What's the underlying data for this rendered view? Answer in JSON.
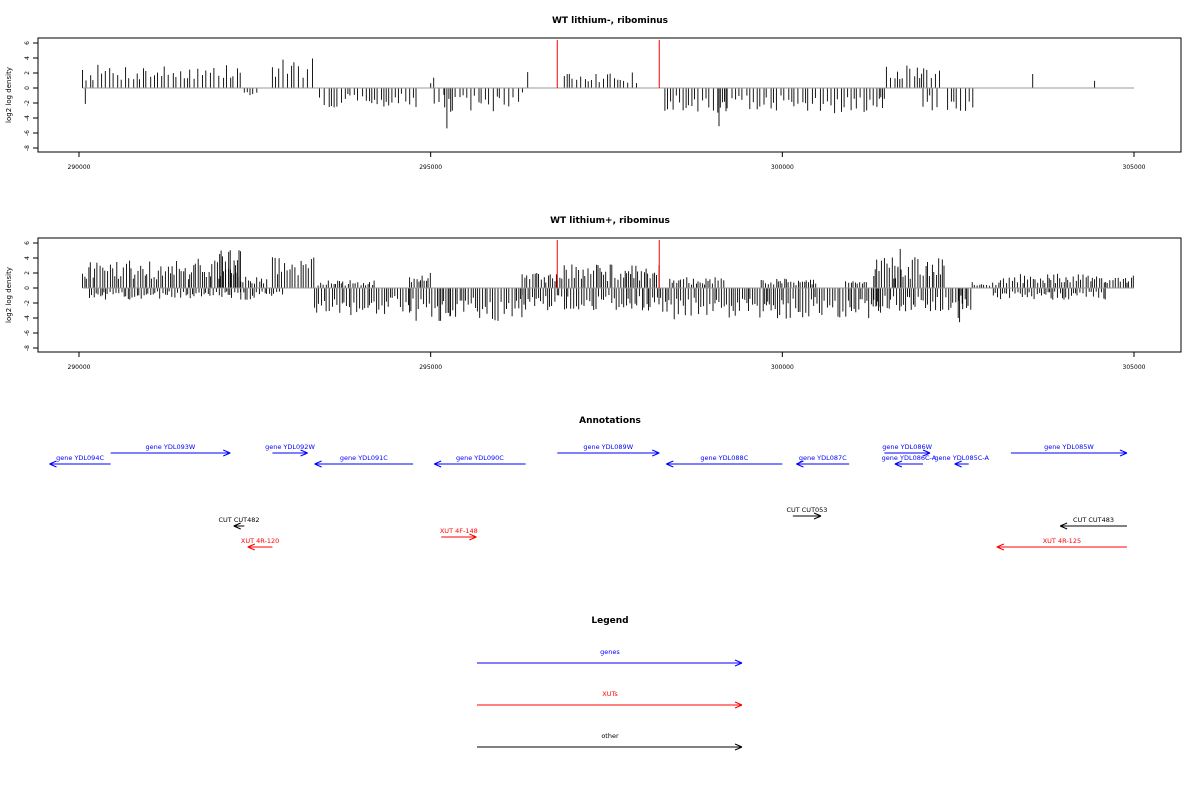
{
  "colors": {
    "gene": "#0000ff",
    "xut": "#ff0000",
    "other": "#000000",
    "marker": "#ff0000",
    "bar": "#000000",
    "baseline": "#999999"
  },
  "chart_data": [
    {
      "type": "bar",
      "title": "WT lithium-, ribominus",
      "ylabel": "log2 log density",
      "xlim": [
        290000,
        305000
      ],
      "ylim": [
        -8,
        6
      ],
      "x_ticks": [
        290000,
        295000,
        300000,
        305000
      ],
      "x_tick_labels": [
        "290000",
        "295000",
        "300000",
        "305000"
      ],
      "y_ticks": [
        6,
        4,
        2,
        0,
        -2,
        -4,
        -6,
        -8
      ],
      "y_tick_labels": [
        "6",
        "4",
        "2",
        "0",
        "-2",
        "-4",
        "-6",
        "-8"
      ],
      "x_range": [
        290050,
        305000
      ],
      "marker_lines": [
        296800,
        298250
      ],
      "segments": [
        {
          "from": 290050,
          "to": 290080,
          "value": 5.0
        },
        {
          "from": 290090,
          "to": 290100,
          "value": -2.8
        },
        {
          "from": 290100,
          "to": 292350,
          "value": 3.0
        },
        {
          "from": 292350,
          "to": 292550,
          "value": -1.0
        },
        {
          "from": 292750,
          "to": 293350,
          "value": 4.0
        },
        {
          "from": 293420,
          "to": 294850,
          "value": -2.5
        },
        {
          "from": 295000,
          "to": 295050,
          "value": 2.0
        },
        {
          "from": 295050,
          "to": 296200,
          "value": -3.0
        },
        {
          "from": 295200,
          "to": 295300,
          "value": -5.5
        },
        {
          "from": 296250,
          "to": 296320,
          "value": -2.0
        },
        {
          "from": 296380,
          "to": 296420,
          "value": 2.3
        },
        {
          "from": 296900,
          "to": 297300,
          "value": 1.8
        },
        {
          "from": 297350,
          "to": 297950,
          "value": 2.0
        },
        {
          "from": 298330,
          "to": 301450,
          "value": -3.2
        },
        {
          "from": 299100,
          "to": 299200,
          "value": -5.0
        },
        {
          "from": 301400,
          "to": 301460,
          "value": -2.5
        },
        {
          "from": 301480,
          "to": 301980,
          "value": 3.5
        },
        {
          "from": 301980,
          "to": 302300,
          "value": 2.5
        },
        {
          "from": 302000,
          "to": 302200,
          "value": -3.0
        },
        {
          "from": 302350,
          "to": 302730,
          "value": -3.0
        },
        {
          "from": 303560,
          "to": 303580,
          "value": 2.5
        },
        {
          "from": 304440,
          "to": 304460,
          "value": 1.0
        }
      ]
    },
    {
      "type": "bar",
      "title": "WT lithium+, ribominus",
      "ylabel": "log2 log density",
      "xlim": [
        290000,
        305000
      ],
      "ylim": [
        -8,
        6
      ],
      "x_ticks": [
        290000,
        295000,
        300000,
        305000
      ],
      "x_tick_labels": [
        "290000",
        "295000",
        "300000",
        "305000"
      ],
      "y_ticks": [
        6,
        4,
        2,
        0,
        -2,
        -4,
        -6,
        -8
      ],
      "y_tick_labels": [
        "6",
        "4",
        "2",
        "0",
        "-2",
        "-4",
        "-6",
        "-8"
      ],
      "x_range": [
        290050,
        305000
      ],
      "marker_lines": [
        296800,
        298250
      ],
      "segments": [
        {
          "from": 290050,
          "to": 292300,
          "value": 3.8
        },
        {
          "from": 290150,
          "to": 292300,
          "value": -1.5
        },
        {
          "from": 292000,
          "to": 292300,
          "value": 5.0
        },
        {
          "from": 292300,
          "to": 292700,
          "value": 1.5
        },
        {
          "from": 292300,
          "to": 292900,
          "value": -1.5
        },
        {
          "from": 292750,
          "to": 293350,
          "value": 4.3
        },
        {
          "from": 293350,
          "to": 294700,
          "value": -3.5
        },
        {
          "from": 293400,
          "to": 294200,
          "value": 1.0
        },
        {
          "from": 294700,
          "to": 295000,
          "value": 2.0
        },
        {
          "from": 294700,
          "to": 296300,
          "value": -4.2
        },
        {
          "from": 295250,
          "to": 295300,
          "value": -8.0
        },
        {
          "from": 296300,
          "to": 296800,
          "value": -3.0
        },
        {
          "from": 296300,
          "to": 296800,
          "value": 2.0
        },
        {
          "from": 296800,
          "to": 298250,
          "value": 3.0
        },
        {
          "from": 296800,
          "to": 298300,
          "value": -3.0
        },
        {
          "from": 298300,
          "to": 301400,
          "value": -4.0
        },
        {
          "from": 298400,
          "to": 299200,
          "value": 1.5
        },
        {
          "from": 299700,
          "to": 300500,
          "value": 1.2
        },
        {
          "from": 300900,
          "to": 301200,
          "value": 1.0
        },
        {
          "from": 301300,
          "to": 302300,
          "value": 4.0
        },
        {
          "from": 301600,
          "to": 301700,
          "value": 5.5
        },
        {
          "from": 301300,
          "to": 302700,
          "value": -3.0
        },
        {
          "from": 302500,
          "to": 302600,
          "value": -5.5
        },
        {
          "from": 302700,
          "to": 303100,
          "value": 1.0
        },
        {
          "from": 303100,
          "to": 305000,
          "value": 1.8
        },
        {
          "from": 303000,
          "to": 304600,
          "value": -1.5
        }
      ]
    }
  ],
  "annotations": {
    "title": "Annotations",
    "items": [
      {
        "name": "gene YDL094C",
        "kind": "gene",
        "strand": "-",
        "start": 290050,
        "end": 290450
      },
      {
        "name": "gene YDL093W",
        "kind": "gene",
        "strand": "+",
        "start": 290450,
        "end": 292150
      },
      {
        "name": "gene YDL092W",
        "kind": "gene",
        "strand": "+",
        "start": 292750,
        "end": 293250
      },
      {
        "name": "gene YDL091C",
        "kind": "gene",
        "strand": "-",
        "start": 293350,
        "end": 294750
      },
      {
        "name": "gene YDL090C",
        "kind": "gene",
        "strand": "-",
        "start": 295050,
        "end": 296350
      },
      {
        "name": "gene YDL089W",
        "kind": "gene",
        "strand": "+",
        "start": 296800,
        "end": 298250
      },
      {
        "name": "gene YDL088C",
        "kind": "gene",
        "strand": "-",
        "start": 298350,
        "end": 300000
      },
      {
        "name": "gene YDL087C",
        "kind": "gene",
        "strand": "-",
        "start": 300200,
        "end": 300950
      },
      {
        "name": "gene YDL086W",
        "kind": "gene",
        "strand": "+",
        "start": 301450,
        "end": 302100
      },
      {
        "name": "gene YDL086C-A",
        "kind": "gene",
        "strand": "-",
        "start": 301600,
        "end": 302000
      },
      {
        "name": "gene YDL085C-A",
        "kind": "gene",
        "strand": "-",
        "start": 302450,
        "end": 302650
      },
      {
        "name": "gene YDL085W",
        "kind": "gene",
        "strand": "+",
        "start": 303250,
        "end": 304900
      },
      {
        "name": "CUT CUT482",
        "kind": "other",
        "strand": "-",
        "start": 292200,
        "end": 292350
      },
      {
        "name": "XUT 4R-120",
        "kind": "xut",
        "strand": "-",
        "start": 292400,
        "end": 292750
      },
      {
        "name": "XUT 4F-148",
        "kind": "xut",
        "strand": "+",
        "start": 295150,
        "end": 295650
      },
      {
        "name": "CUT CUT053",
        "kind": "other",
        "strand": "+",
        "start": 300150,
        "end": 300550
      },
      {
        "name": "CUT CUT483",
        "kind": "other",
        "strand": "-",
        "start": 303950,
        "end": 304900
      },
      {
        "name": "XUT 4R-125",
        "kind": "xut",
        "strand": "-",
        "start": 303050,
        "end": 304900
      }
    ]
  },
  "legend": {
    "title": "Legend",
    "items": [
      {
        "label": "genes",
        "kind": "gene"
      },
      {
        "label": "XUTs",
        "kind": "xut"
      },
      {
        "label": "other",
        "kind": "other"
      }
    ]
  }
}
